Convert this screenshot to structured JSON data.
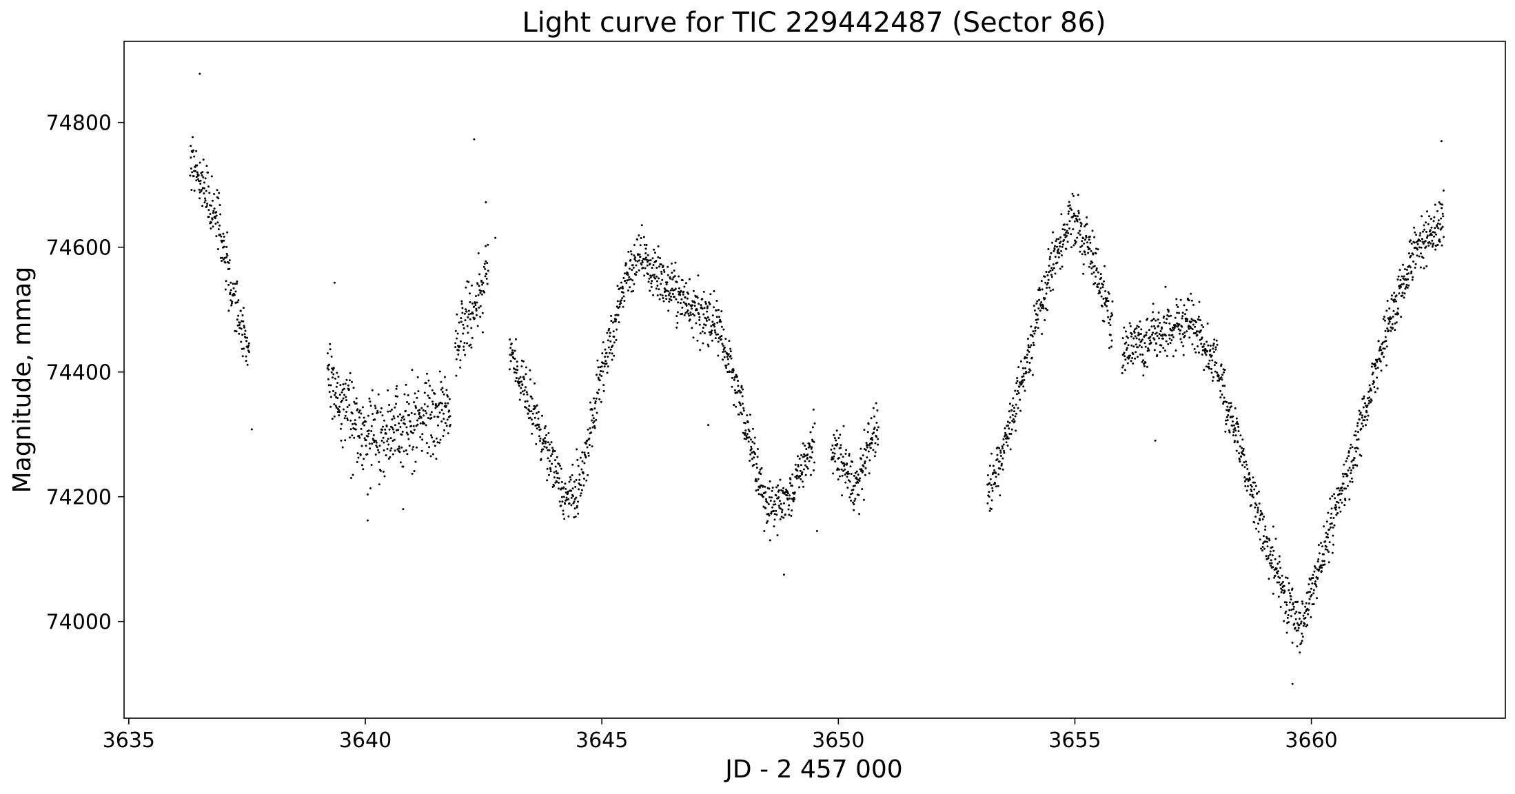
{
  "chart_data": {
    "type": "scatter",
    "title": "Light curve for TIC 229442487 (Sector 86)",
    "xlabel": "JD - 2 457 000",
    "ylabel": "Magnitude, mmag",
    "xlim": [
      3634.9,
      3664.1
    ],
    "ylim": [
      73845,
      74930
    ],
    "xticks": [
      {
        "value": 3635,
        "label": "3635"
      },
      {
        "value": 3640,
        "label": "3640"
      },
      {
        "value": 3645,
        "label": "3645"
      },
      {
        "value": 3650,
        "label": "3650"
      },
      {
        "value": 3655,
        "label": "3655"
      },
      {
        "value": 3660,
        "label": "3660"
      }
    ],
    "yticks": [
      {
        "value": 74000,
        "label": "74000"
      },
      {
        "value": 74200,
        "label": "74200"
      },
      {
        "value": 74400,
        "label": "74400"
      },
      {
        "value": 74600,
        "label": "74600"
      },
      {
        "value": 74800,
        "label": "74800"
      }
    ],
    "marker_color": "#000000",
    "grid": false,
    "legend": "none",
    "segments": [
      {
        "name": "seg-1",
        "x": [
          3636.3,
          3636.6,
          3636.9,
          3637.2,
          3637.55
        ],
        "y": [
          74740,
          74700,
          74640,
          74520,
          74420
        ],
        "scatter": 40
      },
      {
        "name": "seg-2",
        "x": [
          3639.2,
          3639.6,
          3640.0,
          3640.5,
          3641.0,
          3641.5,
          3641.8
        ],
        "y": [
          74380,
          74330,
          74290,
          74300,
          74320,
          74340,
          74340
        ],
        "scatter": 55
      },
      {
        "name": "seg-3",
        "x": [
          3641.9,
          3642.3,
          3642.6
        ],
        "y": [
          74450,
          74500,
          74560
        ],
        "scatter": 50
      },
      {
        "name": "seg-4",
        "x": [
          3643.05,
          3643.4,
          3643.8,
          3644.2,
          3644.5,
          3645.0,
          3645.5,
          3645.8,
          3646.3,
          3647.0,
          3647.5,
          3648.0,
          3648.5,
          3649.0,
          3649.5
        ],
        "y": [
          74430,
          74370,
          74280,
          74200,
          74210,
          74400,
          74540,
          74590,
          74540,
          74500,
          74460,
          74330,
          74170,
          74210,
          74290
        ],
        "scatter": 35
      },
      {
        "name": "seg-5",
        "x": [
          3649.85,
          3650.1,
          3650.4,
          3650.6,
          3650.85
        ],
        "y": [
          74270,
          74260,
          74210,
          74270,
          74310
        ],
        "scatter": 40
      },
      {
        "name": "seg-6",
        "x": [
          3653.15,
          3653.5,
          3654.0,
          3654.5,
          3654.9,
          3655.3,
          3655.8
        ],
        "y": [
          74200,
          74280,
          74420,
          74560,
          74650,
          74600,
          74470
        ],
        "scatter": 35
      },
      {
        "name": "seg-7",
        "x": [
          3656.0,
          3656.5,
          3657.0,
          3657.5,
          3658.0,
          3658.5,
          3659.0,
          3659.5,
          3659.8,
          3660.2,
          3660.7,
          3661.2,
          3661.7,
          3662.2,
          3662.8
        ],
        "y": [
          74430,
          74450,
          74470,
          74480,
          74410,
          74270,
          74140,
          74030,
          73990,
          74100,
          74220,
          74360,
          74490,
          74600,
          74640
        ],
        "scatter": 35
      }
    ],
    "outliers": [
      {
        "x": 3636.5,
        "y": 74878
      },
      {
        "x": 3637.6,
        "y": 74308
      },
      {
        "x": 3639.35,
        "y": 74543
      },
      {
        "x": 3640.05,
        "y": 74162
      },
      {
        "x": 3640.8,
        "y": 74180
      },
      {
        "x": 3642.3,
        "y": 74773
      },
      {
        "x": 3642.55,
        "y": 74672
      },
      {
        "x": 3642.75,
        "y": 74615
      },
      {
        "x": 3647.25,
        "y": 74315
      },
      {
        "x": 3648.85,
        "y": 74075
      },
      {
        "x": 3649.55,
        "y": 74145
      },
      {
        "x": 3656.7,
        "y": 74290
      },
      {
        "x": 3659.6,
        "y": 73900
      },
      {
        "x": 3662.75,
        "y": 74770
      }
    ]
  }
}
